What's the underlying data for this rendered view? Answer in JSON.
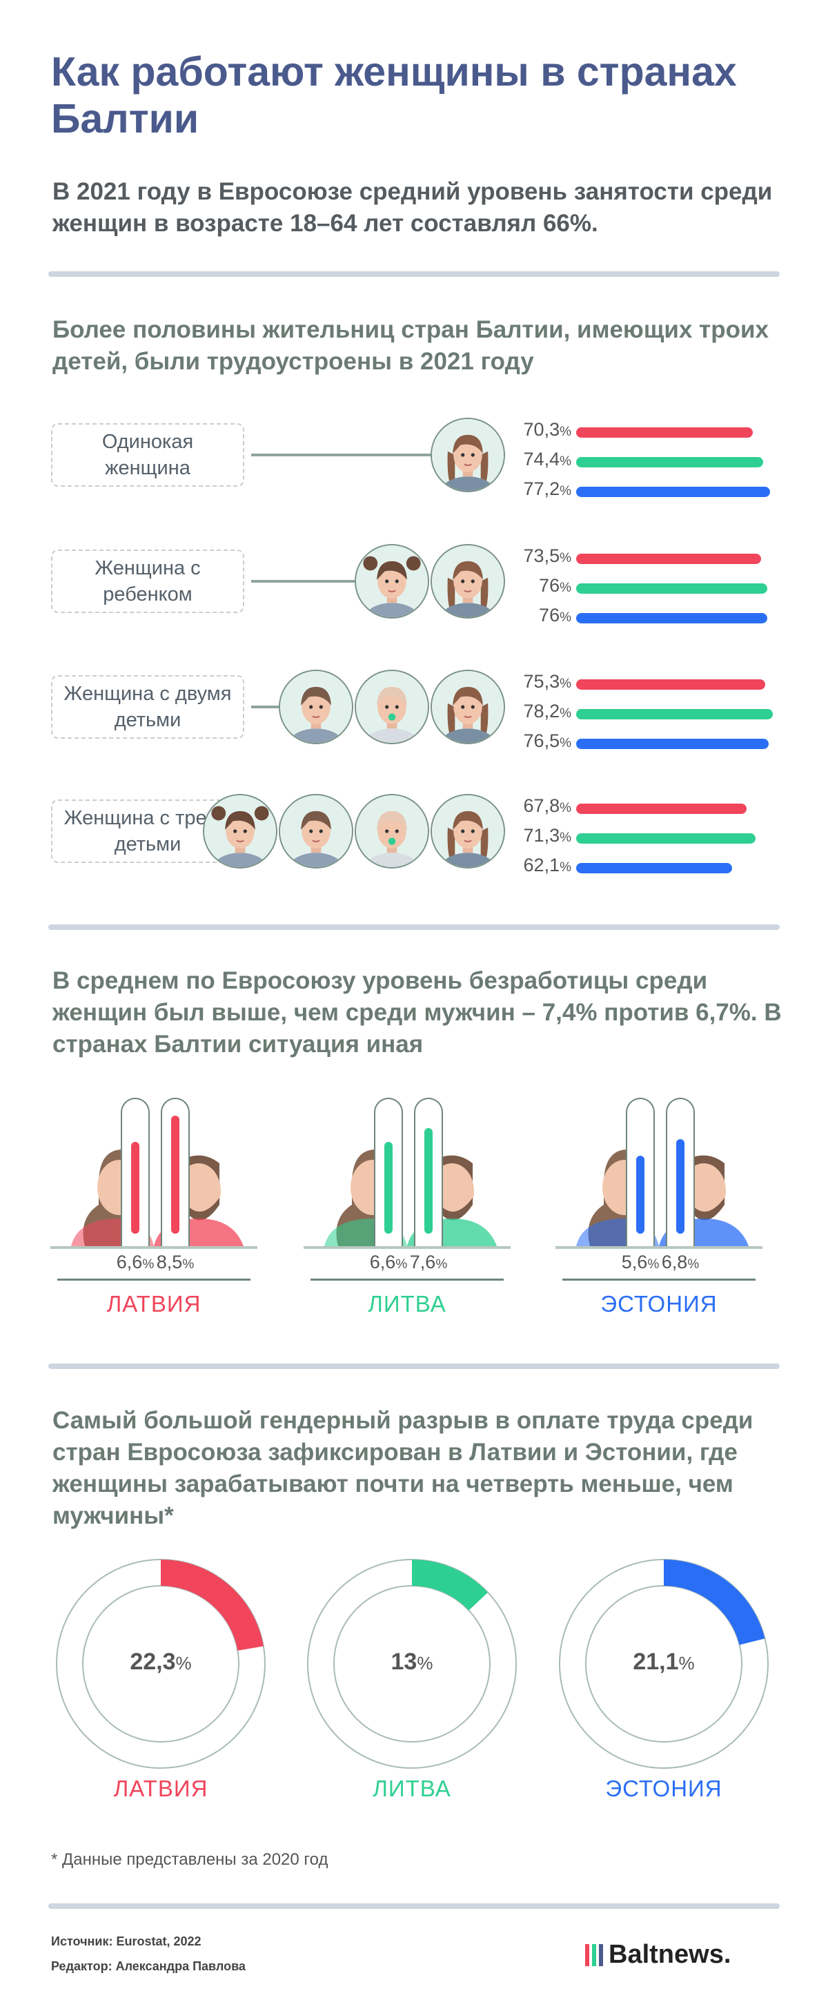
{
  "title": "Как работают женщины в странах Балтии",
  "subtitle": "В 2021 году в Евросоюзе средний уровень занятости среди женщин в возрасте 18–64 лет составлял 66%.",
  "colors": {
    "latvia": "#f0455b",
    "lithuania": "#2ecf92",
    "estonia": "#2a6ef5"
  },
  "section1": {
    "heading": "Более половины жительниц стран Балтии, имеющих троих детей, были трудоустроены в 2021 году",
    "rows": [
      {
        "label": "Одинокая женщина",
        "values": [
          70.3,
          74.4,
          77.2
        ],
        "labels": [
          "70,3",
          "74,4",
          "77,2"
        ]
      },
      {
        "label": "Женщина с ребенком",
        "values": [
          73.5,
          76,
          76
        ],
        "labels": [
          "73,5",
          "76",
          "76"
        ]
      },
      {
        "label": "Женщина с двумя детьми",
        "values": [
          75.3,
          78.2,
          76.5
        ],
        "labels": [
          "75,3",
          "78,2",
          "76,5"
        ]
      },
      {
        "label": "Женщина с тремя детьми",
        "values": [
          67.8,
          71.3,
          62.1
        ],
        "labels": [
          "67,8",
          "71,3",
          "62,1"
        ]
      }
    ],
    "pct_sign": "%"
  },
  "section2": {
    "heading": "В среднем по Евросоюзу уровень безработицы среди женщин был выше, чем среди мужчин – 7,4% против 6,7%. В странах Балтии ситуация иная",
    "countries": [
      {
        "name": "ЛАТВИЯ",
        "women": 6.6,
        "men": 8.5,
        "women_label": "6,6",
        "men_label": "8,5"
      },
      {
        "name": "ЛИТВА",
        "women": 6.6,
        "men": 7.6,
        "women_label": "6,6",
        "men_label": "7,6"
      },
      {
        "name": "ЭСТОНИЯ",
        "women": 5.6,
        "men": 6.8,
        "women_label": "5,6",
        "men_label": "6,8"
      }
    ]
  },
  "section3": {
    "heading": "Самый большой гендерный разрыв в оплате труда среди стран Евросоюза зафиксирован в Латвии и Эстонии, где женщины зарабатывают почти на четверть меньше, чем мужчины*",
    "countries": [
      {
        "name": "ЛАТВИЯ",
        "value": 22.3,
        "label": "22,3"
      },
      {
        "name": "ЛИТВА",
        "value": 13,
        "label": "13"
      },
      {
        "name": "ЭСТОНИЯ",
        "value": 21.1,
        "label": "21,1"
      }
    ],
    "footnote": "* Данные представлены за 2020 год"
  },
  "chart_data": [
    {
      "type": "bar",
      "title": "Более половины жительниц стран Балтии, имеющих троих детей, были трудоустроены в 2021 году",
      "categories": [
        "Одинокая женщина",
        "Женщина с ребенком",
        "Женщина с двумя детьми",
        "Женщина с тремя детьми"
      ],
      "series": [
        {
          "name": "Латвия",
          "values": [
            70.3,
            73.5,
            75.3,
            67.8
          ]
        },
        {
          "name": "Литва",
          "values": [
            74.4,
            76,
            78.2,
            71.3
          ]
        },
        {
          "name": "Эстония",
          "values": [
            77.2,
            76,
            76.5,
            62.1
          ]
        }
      ],
      "ylabel": "%"
    },
    {
      "type": "bar",
      "title": "Уровень безработицы",
      "categories": [
        "ЛАТВИЯ",
        "ЛИТВА",
        "ЭСТОНИЯ"
      ],
      "series": [
        {
          "name": "Женщины",
          "values": [
            6.6,
            6.6,
            5.6
          ]
        },
        {
          "name": "Мужчины",
          "values": [
            8.5,
            7.6,
            6.8
          ]
        }
      ],
      "ylabel": "%"
    },
    {
      "type": "pie",
      "title": "Гендерный разрыв в оплате труда",
      "categories": [
        "ЛАТВИЯ",
        "ЛИТВА",
        "ЭСТОНИЯ"
      ],
      "values": [
        22.3,
        13,
        21.1
      ],
      "ylabel": "%"
    }
  ],
  "footer": {
    "source": "Источник: Eurostat, 2022",
    "editor": "Редактор: Александра Павлова",
    "brand": "Baltnews."
  }
}
